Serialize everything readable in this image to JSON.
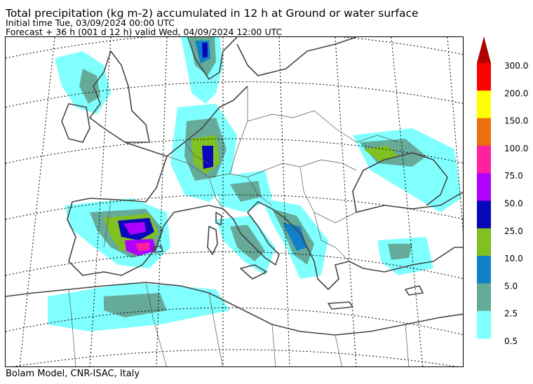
{
  "header": {
    "title": "Total precipitation (kg m-2) accumulated in  12 h at Ground or water surface",
    "initial_time": "Initial time  Tue, 03/09/2024  00:00 UTC",
    "forecast": "Forecast  +  36 h  (001 d 12 h)  valid Wed, 04/09/2024 12:00 UTC"
  },
  "footer": {
    "credit": "Bolam Model, CNR-ISAC, Italy"
  },
  "colorbar": {
    "classes": [
      {
        "label": "0.5",
        "color": "#80ffff"
      },
      {
        "label": "2.5",
        "color": "#66aa99"
      },
      {
        "label": "5.0",
        "color": "#1080c8"
      },
      {
        "label": "10.0",
        "color": "#80c020"
      },
      {
        "label": "25.0",
        "color": "#0808b8"
      },
      {
        "label": "50.0",
        "color": "#b000ff"
      },
      {
        "label": "75.0",
        "color": "#ff20a0"
      },
      {
        "label": "100.0",
        "color": "#e87010"
      },
      {
        "label": "150.0",
        "color": "#ffff00"
      },
      {
        "label": "200.0",
        "color": "#ff0000"
      },
      {
        "label": "300.0",
        "color": "#b00000"
      }
    ],
    "extend_color": "#b00000"
  },
  "map": {
    "coast_color": "#444444",
    "border_color": "#555555",
    "graticule_color": "#000000"
  }
}
